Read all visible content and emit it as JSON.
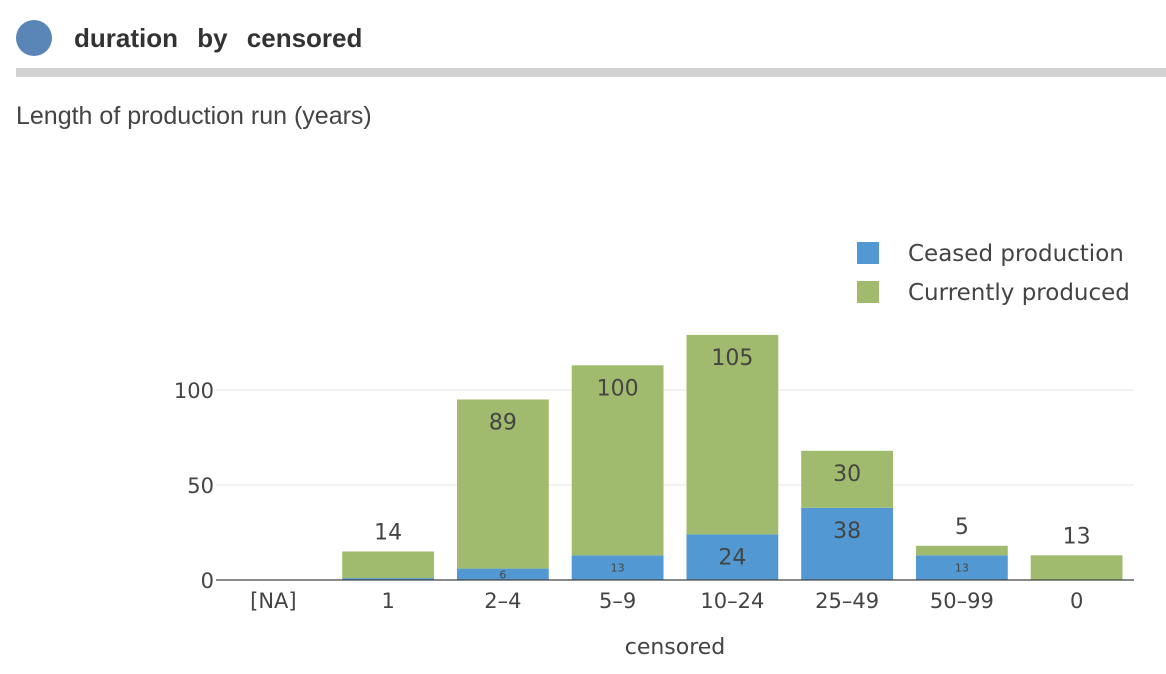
{
  "header": {
    "title": "duration by censored",
    "dot_color": "#5a86b7"
  },
  "subtitle": "Length of production run (years)",
  "chart_data": {
    "type": "bar",
    "stacked": true,
    "categories": [
      "[NA]",
      "1",
      "2–4",
      "5–9",
      "10–24",
      "25–49",
      "50–99",
      "0"
    ],
    "series": [
      {
        "name": "Ceased production",
        "color": "#5299d3",
        "values": [
          0,
          1,
          6,
          13,
          24,
          38,
          13,
          0
        ],
        "labels": [
          "",
          "",
          "6",
          "13",
          "24",
          "38",
          "13",
          ""
        ]
      },
      {
        "name": "Currently produced",
        "color": "#a1bb6e",
        "values": [
          0,
          14,
          89,
          100,
          105,
          30,
          5,
          13
        ],
        "labels": [
          "",
          "14",
          "89",
          "100",
          "105",
          "30",
          "5",
          "13"
        ]
      }
    ],
    "xlabel": "censored",
    "ylabel": "",
    "ylim": [
      0,
      130
    ],
    "yticks": [
      0,
      50,
      100
    ],
    "grid": true,
    "legend_position": "top-right"
  }
}
